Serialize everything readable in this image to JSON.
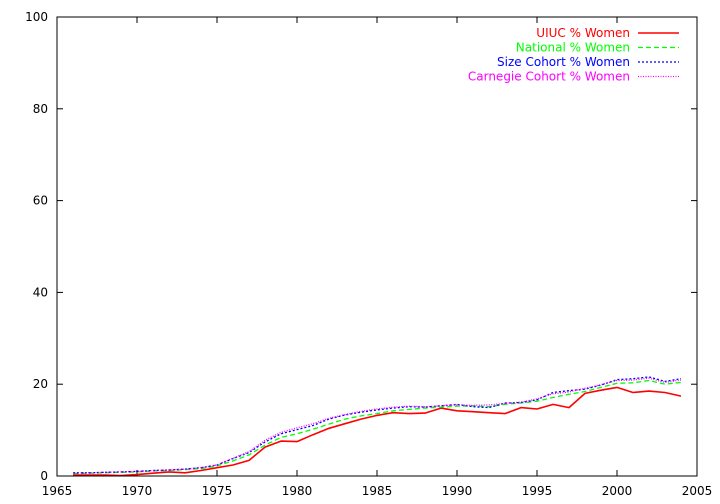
{
  "chart_data": {
    "type": "line",
    "title": "",
    "xlabel": "",
    "ylabel": "",
    "xlim": [
      1965,
      2005
    ],
    "ylim": [
      0,
      100
    ],
    "xticks": [
      1965,
      1970,
      1975,
      1980,
      1985,
      1990,
      1995,
      2000,
      2005
    ],
    "yticks": [
      0,
      20,
      40,
      60,
      80,
      100
    ],
    "grid": false,
    "legend_position": "top-right",
    "x": [
      1966,
      1967,
      1968,
      1969,
      1970,
      1971,
      1972,
      1973,
      1974,
      1975,
      1976,
      1977,
      1978,
      1979,
      1980,
      1981,
      1982,
      1983,
      1984,
      1985,
      1986,
      1987,
      1988,
      1989,
      1990,
      1991,
      1992,
      1993,
      1994,
      1995,
      1996,
      1997,
      1998,
      1999,
      2000,
      2001,
      2002,
      2003,
      2004
    ],
    "series": [
      {
        "name": "UIUC % Women",
        "color": "#ff0000",
        "dash": "solid",
        "values": [
          0.2,
          0.2,
          0.2,
          0.1,
          0.3,
          0.6,
          0.9,
          0.7,
          1.2,
          1.8,
          2.4,
          3.4,
          6.3,
          7.6,
          7.5,
          9.0,
          10.4,
          11.4,
          12.4,
          13.2,
          13.8,
          13.6,
          13.7,
          14.8,
          14.2,
          14.0,
          13.8,
          13.6,
          14.9,
          14.6,
          15.6,
          14.9,
          18.0,
          18.7,
          19.3,
          18.2,
          18.5,
          18.2,
          17.4
        ]
      },
      {
        "name": "National % Women",
        "color": "#00ff00",
        "dash": "dashed",
        "values": [
          0.5,
          0.6,
          0.7,
          0.8,
          0.9,
          1.1,
          1.2,
          1.4,
          1.6,
          2.2,
          3.3,
          4.6,
          6.7,
          8.4,
          9.2,
          10.2,
          11.3,
          12.4,
          13.1,
          13.6,
          14.2,
          14.5,
          14.8,
          15.0,
          15.2,
          15.3,
          15.1,
          15.6,
          15.9,
          16.3,
          17.1,
          17.8,
          18.4,
          19.3,
          20.2,
          20.3,
          20.8,
          20.0,
          20.4
        ]
      },
      {
        "name": "Size Cohort % Women",
        "color": "#0000ff",
        "dash": "dotted",
        "values": [
          0.7,
          0.7,
          0.8,
          0.9,
          1.0,
          1.2,
          1.3,
          1.5,
          1.8,
          2.4,
          3.8,
          5.1,
          7.4,
          9.2,
          10.1,
          11.0,
          12.4,
          13.3,
          13.9,
          14.4,
          14.8,
          15.1,
          15.0,
          15.3,
          15.6,
          15.1,
          14.9,
          15.9,
          16.0,
          16.6,
          18.2,
          18.6,
          18.9,
          19.8,
          21.0,
          21.2,
          21.6,
          20.6,
          21.2
        ]
      },
      {
        "name": "Carnegie Cohort % Women",
        "color": "#ff00ff",
        "dash": "fine-dotted",
        "values": [
          0.6,
          0.7,
          0.8,
          0.9,
          1.0,
          1.2,
          1.3,
          1.5,
          1.8,
          2.4,
          3.9,
          5.3,
          7.8,
          9.5,
          10.5,
          11.4,
          12.6,
          13.4,
          14.1,
          14.6,
          15.0,
          15.2,
          15.1,
          15.3,
          15.5,
          15.4,
          15.5,
          15.8,
          16.1,
          16.8,
          17.9,
          18.3,
          19.1,
          19.9,
          20.8,
          20.9,
          21.3,
          20.4,
          20.9
        ]
      }
    ]
  }
}
